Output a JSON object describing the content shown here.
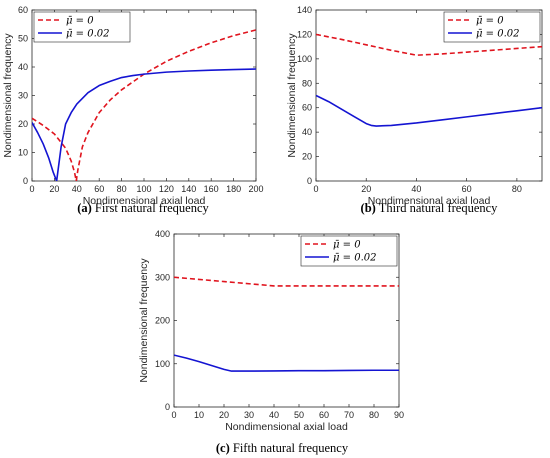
{
  "figure": {
    "captions": [
      {
        "label": "(a)",
        "text": " First natural frequency"
      },
      {
        "label": "(b)",
        "text": " Third natural frequency"
      },
      {
        "label": "(c)",
        "text": " Fifth natural frequency"
      }
    ]
  },
  "colors": {
    "series_mu0": "#e0141e",
    "series_mu002": "#1414d2",
    "axis": "#262626"
  },
  "chart_data": [
    {
      "type": "line",
      "xlabel": "Nondimensional axial load",
      "ylabel": "Nondimensional  frequency",
      "xlim": [
        0,
        200
      ],
      "ylim": [
        0,
        60
      ],
      "xticks": [
        0,
        20,
        40,
        60,
        80,
        100,
        120,
        140,
        160,
        180,
        200
      ],
      "yticks": [
        0,
        10,
        20,
        30,
        40,
        50,
        60
      ],
      "legend_position": "top-left",
      "grid": false,
      "series": [
        {
          "name": "μ̄ = 0",
          "style": "dashed",
          "color": "#e0141e",
          "x": [
            0,
            10,
            20,
            30,
            35,
            38,
            39.5,
            41,
            45,
            50,
            60,
            70,
            80,
            100,
            120,
            140,
            160,
            180,
            200
          ],
          "y": [
            22,
            19.5,
            16.5,
            11.5,
            7,
            3,
            0,
            4,
            12,
            17,
            24,
            28.5,
            32,
            37.5,
            42,
            45.5,
            48.5,
            51,
            53
          ]
        },
        {
          "name": "μ̄ = 0.02",
          "style": "solid",
          "color": "#1414d2",
          "x": [
            0,
            5,
            10,
            15,
            19,
            22,
            24,
            26,
            30,
            35,
            40,
            50,
            60,
            70,
            80,
            90,
            100,
            120,
            140,
            160,
            180,
            200
          ],
          "y": [
            20.5,
            17,
            13,
            8,
            3,
            0,
            6,
            12,
            20,
            24,
            27,
            31,
            33.5,
            35,
            36.3,
            37,
            37.5,
            38.2,
            38.6,
            38.9,
            39.1,
            39.3
          ]
        }
      ]
    },
    {
      "type": "line",
      "xlabel": "Nondimensional axial load",
      "ylabel": "Nondimensional  frequency",
      "xlim": [
        0,
        90
      ],
      "ylim": [
        0,
        140
      ],
      "xticks": [
        0,
        20,
        40,
        60,
        80
      ],
      "yticks": [
        0,
        20,
        40,
        60,
        80,
        100,
        120,
        140
      ],
      "legend_position": "top-right",
      "grid": false,
      "series": [
        {
          "name": "μ̄ = 0",
          "style": "dashed",
          "color": "#e0141e",
          "x": [
            0,
            10,
            20,
            30,
            40,
            50,
            60,
            70,
            80,
            90
          ],
          "y": [
            120,
            116,
            111.5,
            107,
            103,
            104,
            105.5,
            107,
            108.5,
            110
          ]
        },
        {
          "name": "μ̄ = 0.02",
          "style": "solid",
          "color": "#1414d2",
          "x": [
            0,
            5,
            10,
            15,
            20,
            22,
            24,
            30,
            40,
            50,
            60,
            70,
            80,
            90
          ],
          "y": [
            70,
            65,
            59,
            53,
            47,
            45.5,
            45,
            45.5,
            47.5,
            50,
            52.5,
            55,
            57.5,
            60
          ]
        }
      ]
    },
    {
      "type": "line",
      "xlabel": "Nondimensional axial load",
      "ylabel": "Nondimensional  frequency",
      "xlim": [
        0,
        90
      ],
      "ylim": [
        0,
        400
      ],
      "xticks": [
        0,
        10,
        20,
        30,
        40,
        50,
        60,
        70,
        80,
        90
      ],
      "yticks": [
        0,
        100,
        200,
        300,
        400
      ],
      "legend_position": "top-right",
      "grid": false,
      "series": [
        {
          "name": "μ̄ = 0",
          "style": "dashed",
          "color": "#e0141e",
          "x": [
            0,
            10,
            20,
            30,
            40,
            50,
            60,
            70,
            80,
            90
          ],
          "y": [
            300,
            295,
            290,
            285,
            280,
            280,
            280,
            280,
            280,
            280
          ]
        },
        {
          "name": "μ̄ = 0.02",
          "style": "solid",
          "color": "#1414d2",
          "x": [
            0,
            5,
            10,
            15,
            20,
            23,
            30,
            40,
            50,
            60,
            70,
            80,
            90
          ],
          "y": [
            120,
            113,
            105,
            96,
            87,
            83,
            83,
            83.5,
            84,
            84,
            84.5,
            85,
            85
          ]
        }
      ]
    }
  ]
}
